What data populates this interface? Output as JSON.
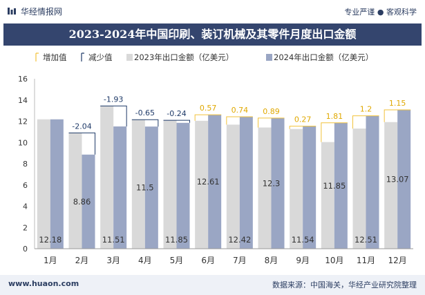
{
  "header": {
    "brand": "华经情报网",
    "tagline": "专业严谨 ● 客观科学"
  },
  "footer": {
    "website": "www.huaon.com",
    "source": "数据来源：中国海关，华经产业研究院整理"
  },
  "colors": {
    "bar_2023": "#d9d9d9",
    "bar_2024": "#9aa6c4",
    "increase": "#f2c23a",
    "decrease": "#1f3a68",
    "title_bg": "#34456e"
  },
  "chart_data": {
    "type": "bar",
    "title": "2023-2024年中国印刷、装订机械及其零件月度出口金额",
    "xlabel": "",
    "ylabel": "",
    "ylim": [
      0,
      16
    ],
    "yticks": [
      0,
      2,
      4,
      6,
      8,
      10,
      12,
      14,
      16
    ],
    "grid": false,
    "legend_position": "top-left",
    "legend": [
      "增加值",
      "减少值",
      "2023年出口金额（亿美元）",
      "2024年出口金额（亿美元）"
    ],
    "categories": [
      "1月",
      "2月",
      "3月",
      "4月",
      "5月",
      "6月",
      "7月",
      "8月",
      "9月",
      "10月",
      "11月",
      "12月"
    ],
    "series": [
      {
        "name": "2023年出口金额（亿美元）",
        "values": [
          12.18,
          10.9,
          13.44,
          12.15,
          12.09,
          12.04,
          11.68,
          11.41,
          11.27,
          10.04,
          11.31,
          11.92
        ]
      },
      {
        "name": "2024年出口金额（亿美元）",
        "values": [
          12.18,
          8.86,
          11.51,
          11.5,
          11.85,
          12.61,
          12.42,
          12.3,
          11.54,
          11.85,
          12.51,
          13.07
        ]
      }
    ],
    "bottom_labels": [
      "12.18",
      "",
      "11.51",
      "",
      "11.85",
      "",
      "12.42",
      "",
      "11.54",
      "",
      "12.51",
      ""
    ],
    "mid_labels": [
      "",
      "8.86",
      "",
      "11.5",
      "",
      "12.61",
      "",
      "12.3",
      "",
      "11.85",
      "",
      "13.07"
    ],
    "change_labels": [
      "",
      "-2.04",
      "-1.93",
      "-0.65",
      "-0.24",
      "0.57",
      "0.74",
      "0.89",
      "0.27",
      "1.81",
      "1.2",
      "1.15"
    ]
  }
}
